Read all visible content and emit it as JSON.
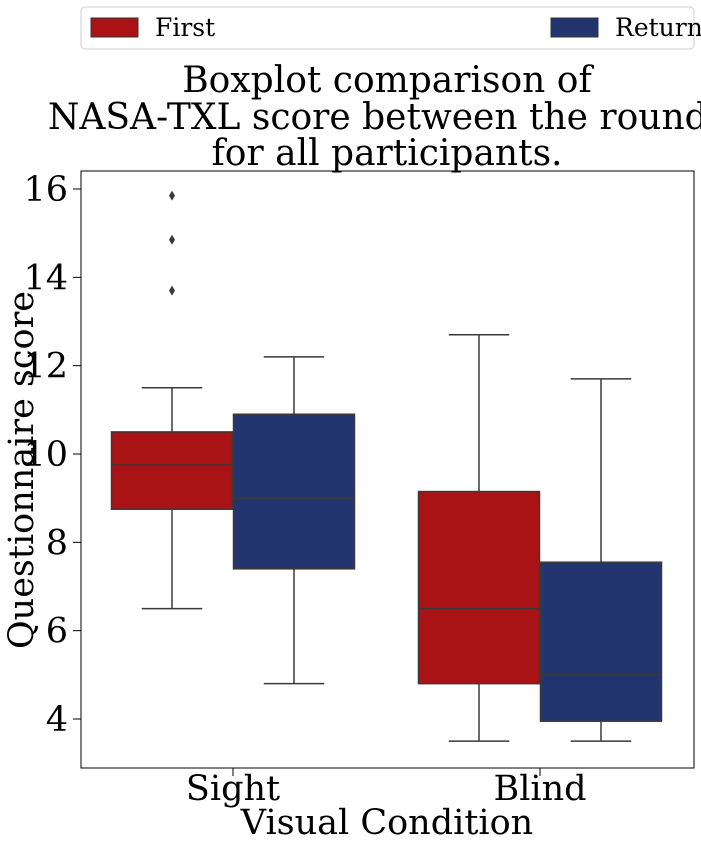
{
  "chart_data": {
    "type": "boxplot",
    "title": [
      "Boxplot comparison of",
      "NASA-TXL score between the rounds",
      "for all participants."
    ],
    "xlabel": "Visual Condition",
    "ylabel": "Questionnaire score",
    "categories": [
      "Sight",
      "Blind"
    ],
    "ylim": [
      2.9,
      16.4
    ],
    "yticks": [
      4,
      6,
      8,
      10,
      12,
      14,
      16
    ],
    "ytick_labels": [
      "4",
      "6",
      "8",
      "10",
      "12",
      "14",
      "16"
    ],
    "grid": false,
    "legend": {
      "placement": "top, outside plot",
      "entries": [
        "First",
        "Return"
      ]
    },
    "series": [
      {
        "name": "First",
        "color": "#AA1316",
        "boxes": [
          {
            "whisker_low": 6.5,
            "q1": 8.75,
            "median": 9.75,
            "q3": 10.5,
            "whisker_high": 11.5,
            "outliers": [
              13.7,
              14.85,
              15.85
            ]
          },
          {
            "whisker_low": 3.5,
            "q1": 4.8,
            "median": 6.5,
            "q3": 9.15,
            "whisker_high": 12.7,
            "outliers": []
          }
        ]
      },
      {
        "name": "Return",
        "color": "#22356E",
        "boxes": [
          {
            "whisker_low": 4.8,
            "q1": 7.4,
            "median": 9.0,
            "q3": 10.9,
            "whisker_high": 12.2,
            "outliers": []
          },
          {
            "whisker_low": 3.5,
            "q1": 3.95,
            "median": 5.0,
            "q3": 7.55,
            "whisker_high": 11.7,
            "outliers": []
          }
        ]
      }
    ]
  }
}
